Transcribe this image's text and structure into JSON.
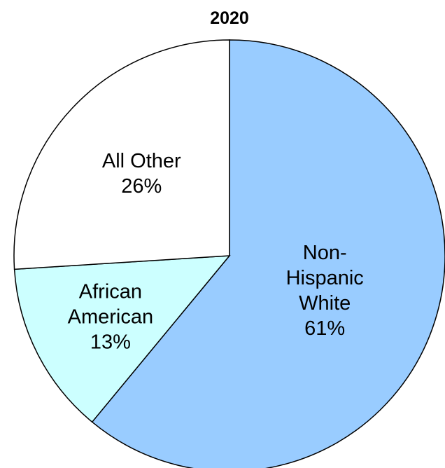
{
  "chart_data": {
    "type": "pie",
    "title": "2020",
    "start_angle_deg": 0,
    "direction": "clockwise",
    "slices": [
      {
        "label_lines": [
          "Non-",
          "Hispanic",
          "White"
        ],
        "value_label": "61%",
        "value": 61,
        "color": "#99ccff"
      },
      {
        "label_lines": [
          "African",
          "American"
        ],
        "value_label": "13%",
        "value": 13,
        "color": "#ccffff"
      },
      {
        "label_lines": [
          "All Other"
        ],
        "value_label": "26%",
        "value": 26,
        "color": "#ffffff"
      }
    ],
    "edge_color": "#000000"
  }
}
